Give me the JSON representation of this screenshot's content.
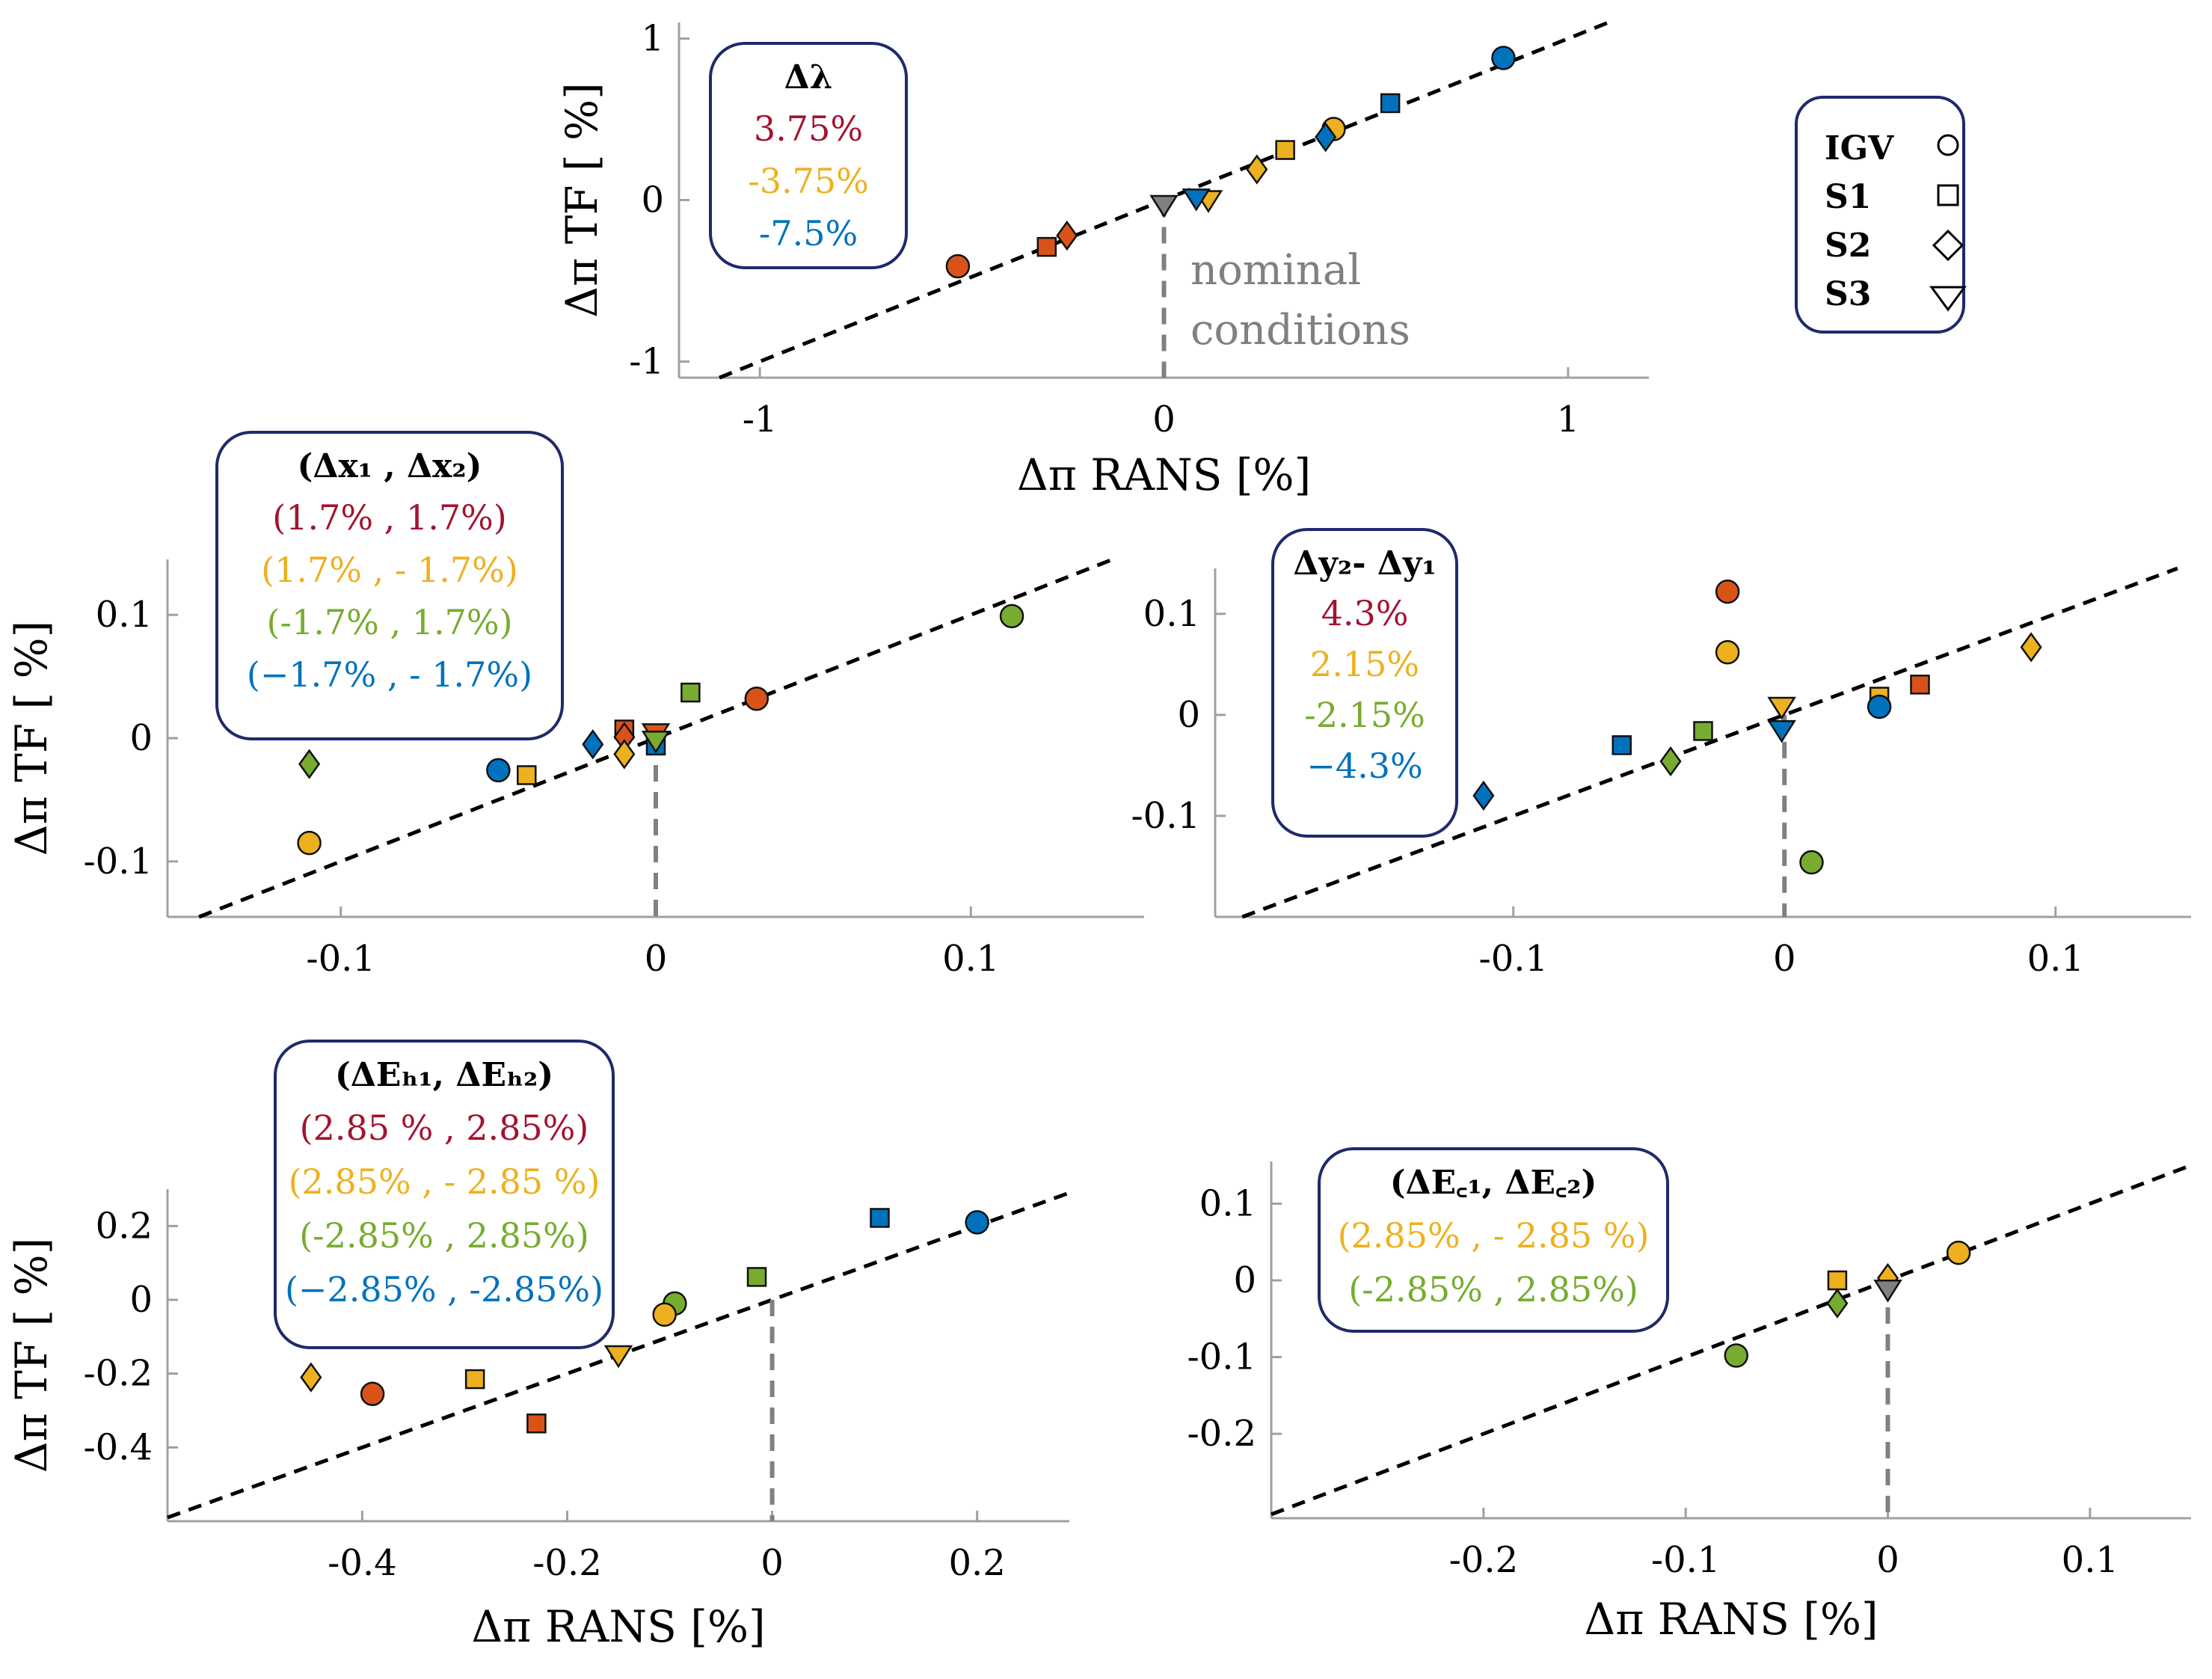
{
  "colors": {
    "red": "#D95319",
    "darkred": "#A2142F",
    "orange": "#EDB120",
    "blue": "#0072BD",
    "green": "#77AC30",
    "gray": "#808080",
    "navy": "#1F2A6B"
  },
  "marker_legend": {
    "items": [
      {
        "label": "IGV",
        "marker": "circle"
      },
      {
        "label": "S1",
        "marker": "square"
      },
      {
        "label": "S2",
        "marker": "diamond"
      },
      {
        "label": "S3",
        "marker": "triangle-down"
      }
    ]
  },
  "annotation": {
    "nominal_line1": "nominal",
    "nominal_line2": "conditions"
  },
  "chart_data": [
    {
      "id": "lambda",
      "type": "scatter",
      "xlabel": "Δπ RANS [%]",
      "ylabel": "Δπ TF [ %]",
      "xlim": [
        -1.2,
        1.2
      ],
      "ylim": [
        -1.1,
        1.1
      ],
      "xticks": [
        {
          "v": -1,
          "l": "-1"
        },
        {
          "v": 0,
          "l": "0"
        },
        {
          "v": 1,
          "l": "1"
        }
      ],
      "yticks": [
        {
          "v": -1,
          "l": "-1"
        },
        {
          "v": 0,
          "l": "0"
        },
        {
          "v": 1,
          "l": "1"
        }
      ],
      "legend_title": "Δλ",
      "legend_entries": [
        {
          "label": "3.75%",
          "color": "#A2142F"
        },
        {
          "label": "-3.75%",
          "color": "#EDB120"
        },
        {
          "label": "-7.5%",
          "color": "#0072BD"
        }
      ],
      "diagonal": true,
      "nominal_line": true,
      "nominal_text": true,
      "points": [
        {
          "x": 0.84,
          "y": 0.88,
          "m": "circle",
          "c": "#0072BD"
        },
        {
          "x": 0.56,
          "y": 0.6,
          "m": "square",
          "c": "#0072BD"
        },
        {
          "x": 0.42,
          "y": 0.44,
          "m": "circle",
          "c": "#EDB120"
        },
        {
          "x": 0.4,
          "y": 0.39,
          "m": "diamond",
          "c": "#0072BD"
        },
        {
          "x": 0.3,
          "y": 0.31,
          "m": "square",
          "c": "#EDB120"
        },
        {
          "x": 0.23,
          "y": 0.19,
          "m": "diamond",
          "c": "#EDB120"
        },
        {
          "x": 0.11,
          "y": 0.0,
          "m": "triangle-down",
          "c": "#EDB120"
        },
        {
          "x": 0.08,
          "y": 0.01,
          "m": "triangle-down",
          "c": "#0072BD"
        },
        {
          "x": 0.0,
          "y": -0.03,
          "m": "triangle-down",
          "c": "#808080"
        },
        {
          "x": -0.24,
          "y": -0.22,
          "m": "diamond",
          "c": "#D95319"
        },
        {
          "x": -0.29,
          "y": -0.29,
          "m": "square",
          "c": "#D95319"
        },
        {
          "x": -0.51,
          "y": -0.41,
          "m": "circle",
          "c": "#D95319"
        }
      ]
    },
    {
      "id": "x",
      "type": "scatter",
      "xlabel": "",
      "ylabel": "Δπ TF  [ %]",
      "xlim": [
        -0.155,
        0.155
      ],
      "ylim": [
        -0.145,
        0.145
      ],
      "xticks": [
        {
          "v": -0.1,
          "l": "-0.1"
        },
        {
          "v": 0,
          "l": "0"
        },
        {
          "v": 0.1,
          "l": "0.1"
        }
      ],
      "yticks": [
        {
          "v": -0.1,
          "l": "-0.1"
        },
        {
          "v": 0,
          "l": "0"
        },
        {
          "v": 0.1,
          "l": "0.1"
        }
      ],
      "legend_title": "(Δx₁ , Δx₂)",
      "legend_entries": [
        {
          "label": "(1.7% , 1.7%)",
          "color": "#A2142F"
        },
        {
          "label": "(1.7% , - 1.7%)",
          "color": "#EDB120"
        },
        {
          "label": "(-1.7% , 1.7%)",
          "color": "#77AC30"
        },
        {
          "label": "(−1.7% , - 1.7%)",
          "color": "#0072BD"
        }
      ],
      "diagonal": true,
      "nominal_line": true,
      "points": [
        {
          "x": 0.113,
          "y": 0.099,
          "m": "circle",
          "c": "#77AC30"
        },
        {
          "x": 0.032,
          "y": 0.032,
          "m": "circle",
          "c": "#D95319"
        },
        {
          "x": 0.011,
          "y": 0.037,
          "m": "square",
          "c": "#77AC30"
        },
        {
          "x": -0.01,
          "y": 0.007,
          "m": "square",
          "c": "#D95319"
        },
        {
          "x": -0.01,
          "y": 0.001,
          "m": "diamond",
          "c": "#D95319"
        },
        {
          "x": -0.01,
          "y": -0.013,
          "m": "diamond",
          "c": "#EDB120"
        },
        {
          "x": 0.0,
          "y": 0.004,
          "m": "triangle-down",
          "c": "#D95319"
        },
        {
          "x": 0.0,
          "y": -0.006,
          "m": "square",
          "c": "#0072BD"
        },
        {
          "x": 0.0,
          "y": -0.002,
          "m": "triangle-down",
          "c": "#77AC30"
        },
        {
          "x": -0.02,
          "y": -0.005,
          "m": "diamond",
          "c": "#0072BD"
        },
        {
          "x": -0.041,
          "y": -0.03,
          "m": "square",
          "c": "#EDB120"
        },
        {
          "x": -0.05,
          "y": -0.026,
          "m": "circle",
          "c": "#0072BD"
        },
        {
          "x": -0.11,
          "y": -0.021,
          "m": "diamond",
          "c": "#77AC30"
        },
        {
          "x": -0.11,
          "y": -0.085,
          "m": "circle",
          "c": "#EDB120"
        }
      ]
    },
    {
      "id": "y",
      "type": "scatter",
      "xlabel": "",
      "ylabel": "",
      "xlim": [
        -0.21,
        0.15
      ],
      "ylim": [
        -0.2,
        0.145
      ],
      "xticks": [
        {
          "v": -0.1,
          "l": "-0.1"
        },
        {
          "v": 0,
          "l": "0"
        },
        {
          "v": 0.1,
          "l": "0.1"
        }
      ],
      "yticks": [
        {
          "v": -0.1,
          "l": "-0.1"
        },
        {
          "v": 0,
          "l": "0"
        },
        {
          "v": 0.1,
          "l": "0.1"
        }
      ],
      "legend_title": "Δy₂- Δy₁",
      "legend_entries": [
        {
          "label": "4.3%",
          "color": "#A2142F"
        },
        {
          "label": "2.15%",
          "color": "#EDB120"
        },
        {
          "label": "-2.15%",
          "color": "#77AC30"
        },
        {
          "label": "−4.3%",
          "color": "#0072BD"
        }
      ],
      "diagonal": true,
      "nominal_line": true,
      "points": [
        {
          "x": -0.021,
          "y": 0.122,
          "m": "circle",
          "c": "#D95319"
        },
        {
          "x": -0.021,
          "y": 0.062,
          "m": "circle",
          "c": "#EDB120"
        },
        {
          "x": 0.091,
          "y": 0.067,
          "m": "diamond",
          "c": "#EDB120"
        },
        {
          "x": 0.05,
          "y": 0.03,
          "m": "square",
          "c": "#D95319"
        },
        {
          "x": 0.035,
          "y": 0.018,
          "m": "square",
          "c": "#EDB120"
        },
        {
          "x": 0.035,
          "y": 0.008,
          "m": "circle",
          "c": "#0072BD"
        },
        {
          "x": -0.001,
          "y": 0.008,
          "m": "triangle-down",
          "c": "#EDB120"
        },
        {
          "x": -0.001,
          "y": -0.015,
          "m": "triangle-down",
          "c": "#0072BD"
        },
        {
          "x": -0.03,
          "y": -0.016,
          "m": "square",
          "c": "#77AC30"
        },
        {
          "x": -0.06,
          "y": -0.03,
          "m": "square",
          "c": "#0072BD"
        },
        {
          "x": -0.042,
          "y": -0.046,
          "m": "diamond",
          "c": "#77AC30"
        },
        {
          "x": -0.111,
          "y": -0.08,
          "m": "diamond",
          "c": "#0072BD"
        },
        {
          "x": 0.01,
          "y": -0.146,
          "m": "circle",
          "c": "#77AC30"
        }
      ]
    },
    {
      "id": "eh",
      "type": "scatter",
      "xlabel": "Δπ RANS [%]",
      "ylabel": "Δπ TF [ %]",
      "xlim": [
        -0.59,
        0.29
      ],
      "ylim": [
        -0.6,
        0.3
      ],
      "xticks": [
        {
          "v": -0.4,
          "l": "-0.4"
        },
        {
          "v": -0.2,
          "l": "-0.2"
        },
        {
          "v": 0,
          "l": "0"
        },
        {
          "v": 0.2,
          "l": "0.2"
        }
      ],
      "yticks": [
        {
          "v": -0.4,
          "l": "-0.4"
        },
        {
          "v": -0.2,
          "l": "-0.2"
        },
        {
          "v": 0,
          "l": "0"
        },
        {
          "v": 0.2,
          "l": "0.2"
        }
      ],
      "legend_title": "(ΔEₕ₁, ΔEₕ₂)",
      "legend_entries": [
        {
          "label": "(2.85 % , 2.85%)",
          "color": "#A2142F"
        },
        {
          "label": "(2.85% , - 2.85 %)",
          "color": "#EDB120"
        },
        {
          "label": "(-2.85% , 2.85%)",
          "color": "#77AC30"
        },
        {
          "label": "(−2.85% , -2.85%)",
          "color": "#0072BD"
        }
      ],
      "diagonal": true,
      "nominal_line": true,
      "points": [
        {
          "x": 0.2,
          "y": 0.21,
          "m": "circle",
          "c": "#0072BD"
        },
        {
          "x": 0.105,
          "y": 0.222,
          "m": "square",
          "c": "#0072BD"
        },
        {
          "x": -0.015,
          "y": 0.062,
          "m": "square",
          "c": "#77AC30"
        },
        {
          "x": -0.095,
          "y": -0.01,
          "m": "circle",
          "c": "#77AC30"
        },
        {
          "x": -0.105,
          "y": -0.04,
          "m": "circle",
          "c": "#EDB120"
        },
        {
          "x": -0.15,
          "y": -0.15,
          "m": "triangle-down",
          "c": "#EDB120"
        },
        {
          "x": -0.29,
          "y": -0.215,
          "m": "square",
          "c": "#EDB120"
        },
        {
          "x": -0.23,
          "y": -0.335,
          "m": "square",
          "c": "#D95319"
        },
        {
          "x": -0.39,
          "y": -0.255,
          "m": "circle",
          "c": "#D95319"
        },
        {
          "x": -0.45,
          "y": -0.21,
          "m": "diamond",
          "c": "#EDB120"
        }
      ]
    },
    {
      "id": "ec",
      "type": "scatter",
      "xlabel": "Δπ RANS [%]",
      "ylabel": "",
      "xlim": [
        -0.305,
        0.15
      ],
      "ylim": [
        -0.31,
        0.155
      ],
      "xticks": [
        {
          "v": -0.2,
          "l": "-0.2"
        },
        {
          "v": -0.1,
          "l": "-0.1"
        },
        {
          "v": 0,
          "l": "0"
        },
        {
          "v": 0.1,
          "l": "0.1"
        }
      ],
      "yticks": [
        {
          "v": -0.2,
          "l": "-0.2"
        },
        {
          "v": -0.1,
          "l": "-0.1"
        },
        {
          "v": 0,
          "l": "0"
        },
        {
          "v": 0.1,
          "l": "0.1"
        }
      ],
      "legend_title": "(ΔE꜀₁, ΔE꜀₂)",
      "legend_entries": [
        {
          "label": "(2.85% , - 2.85 %)",
          "color": "#EDB120"
        },
        {
          "label": "(-2.85% , 2.85%)",
          "color": "#77AC30"
        }
      ],
      "diagonal": true,
      "nominal_line": true,
      "points": [
        {
          "x": 0.035,
          "y": 0.036,
          "m": "circle",
          "c": "#EDB120"
        },
        {
          "x": -0.025,
          "y": 0.0,
          "m": "square",
          "c": "#EDB120"
        },
        {
          "x": -0.025,
          "y": -0.03,
          "m": "diamond",
          "c": "#77AC30"
        },
        {
          "x": 0.0,
          "y": 0.003,
          "m": "diamond",
          "c": "#EDB120"
        },
        {
          "x": 0.0,
          "y": -0.012,
          "m": "triangle-down",
          "c": "#808080"
        },
        {
          "x": -0.075,
          "y": -0.098,
          "m": "circle",
          "c": "#77AC30"
        }
      ]
    }
  ]
}
